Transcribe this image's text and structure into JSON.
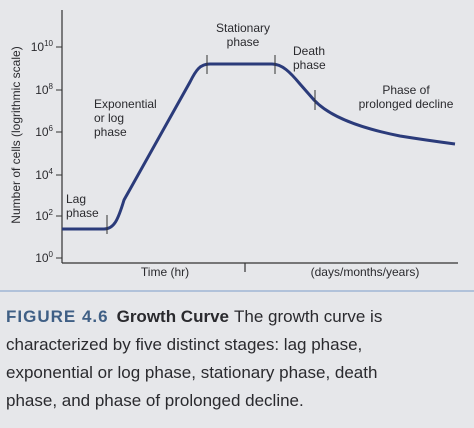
{
  "diagram": {
    "y_axis_label": "Number of cells (logrithmic scale)",
    "y_ticks": [
      {
        "base": "10",
        "exp": "10"
      },
      {
        "base": "10",
        "exp": "8"
      },
      {
        "base": "10",
        "exp": "6"
      },
      {
        "base": "10",
        "exp": "4"
      },
      {
        "base": "10",
        "exp": "2"
      },
      {
        "base": "10",
        "exp": "0"
      }
    ],
    "x_labels": [
      "Time (hr)",
      "(days/months/years)"
    ],
    "phases": [
      {
        "lines": [
          "Lag",
          "phase"
        ]
      },
      {
        "lines": [
          "Exponential",
          "or log",
          "phase"
        ]
      },
      {
        "lines": [
          "Stationary",
          "phase"
        ]
      },
      {
        "lines": [
          "Death",
          "phase"
        ]
      },
      {
        "lines": [
          "Phase of",
          "prolonged decline"
        ]
      }
    ]
  },
  "caption": {
    "figure_label": "FIGURE 4.6",
    "title": "Growth Curve",
    "lines": [
      "The growth curve is",
      "characterized by five distinct stages: lag phase,",
      "exponential or log phase, stationary phase, death",
      "phase, and phase of prolonged decline."
    ]
  }
}
